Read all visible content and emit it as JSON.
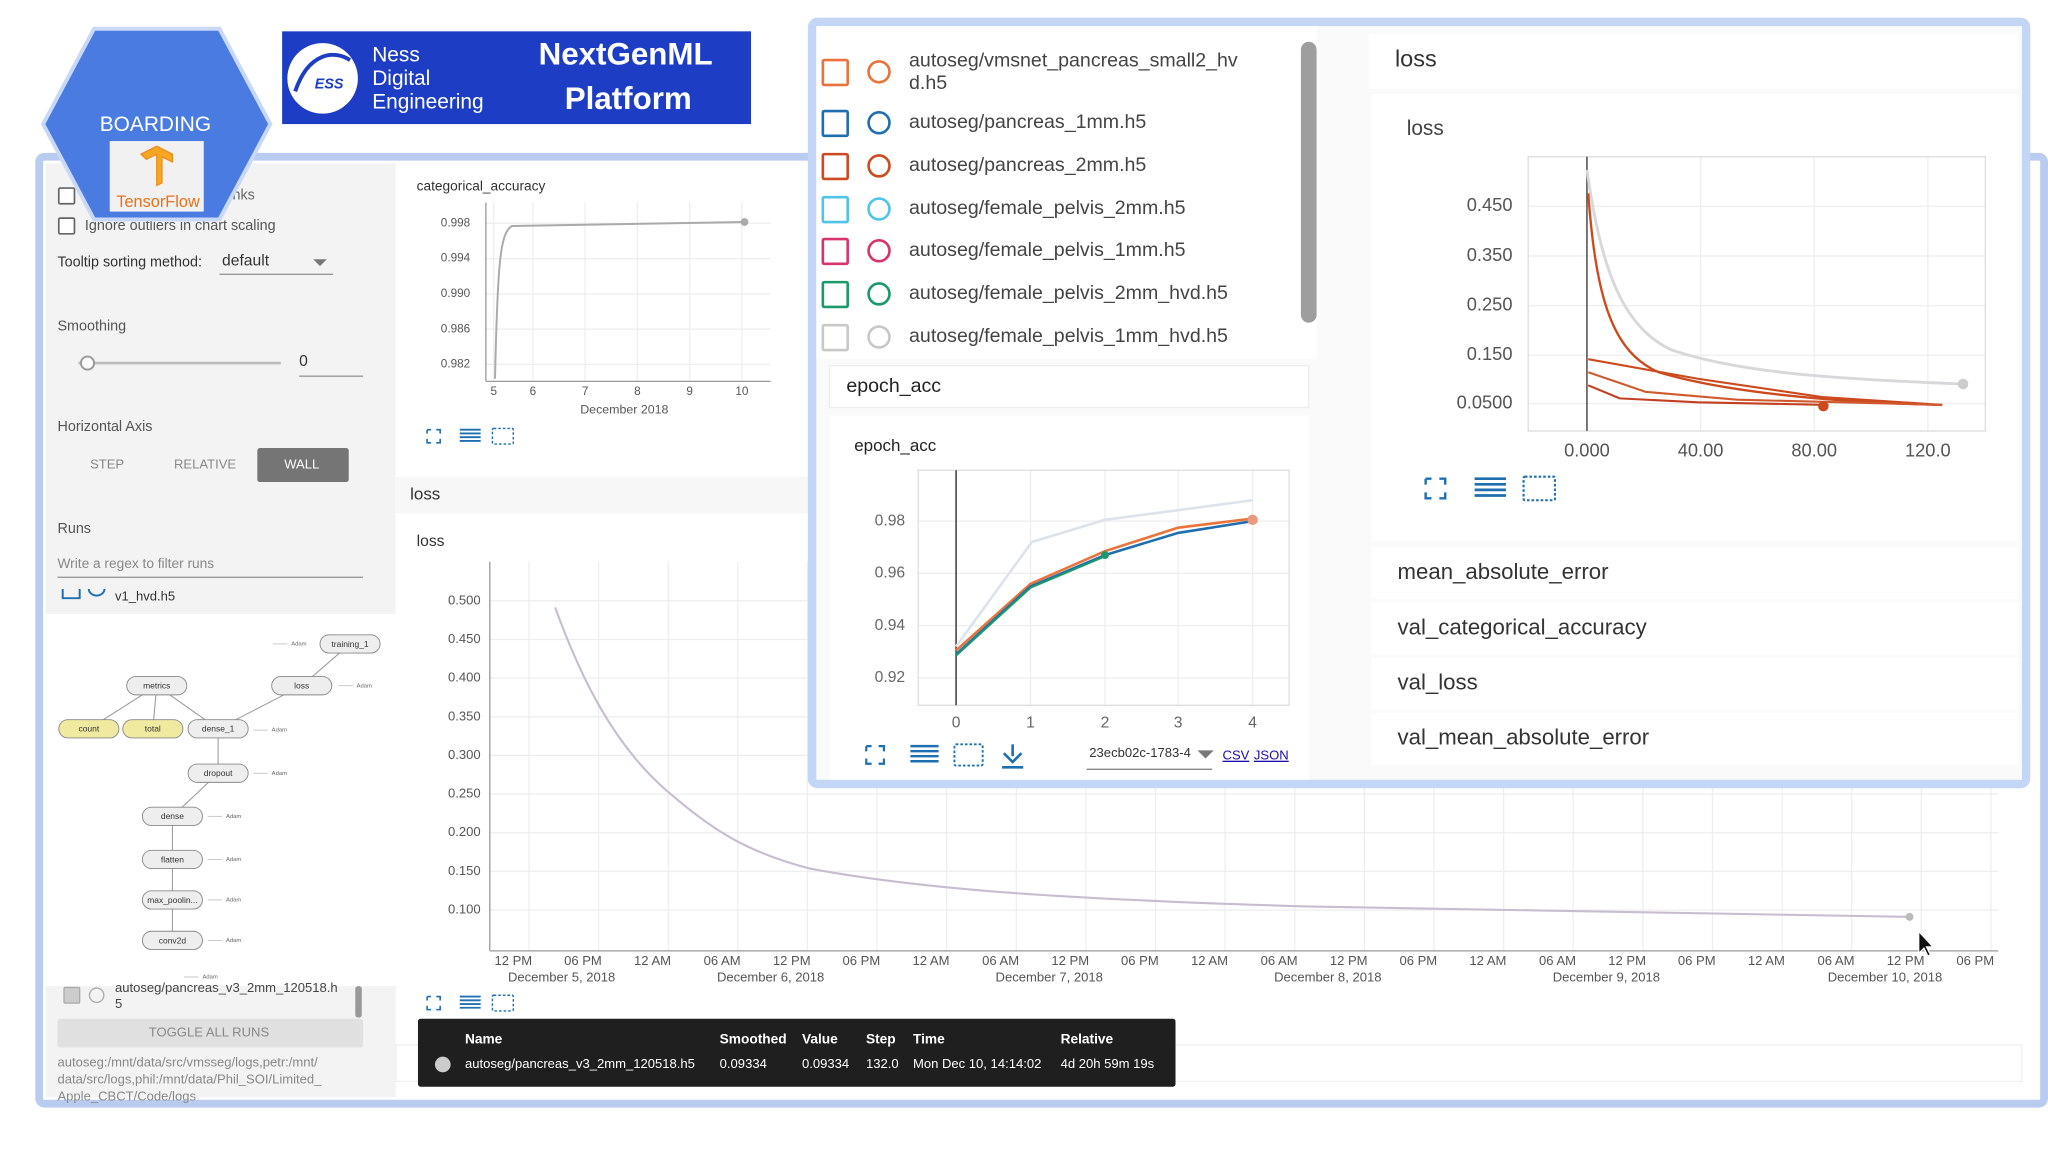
{
  "logo": {
    "badge": "BOARDING",
    "tf": "TensorFlow",
    "company": [
      "Ness",
      "Digital",
      "Engineering"
    ],
    "ess": "ESS",
    "platform": [
      "NextGenML",
      "Platform"
    ]
  },
  "sidebar": {
    "partial_option": "nks",
    "ignore_outliers": "Ignore outliers in chart scaling",
    "tooltip_label": "Tooltip sorting method:",
    "tooltip_value": "default",
    "smoothing": "Smoothing",
    "smoothing_value": "0",
    "horizontal_axis": "Horizontal Axis",
    "axis_buttons": [
      "STEP",
      "RELATIVE",
      "WALL"
    ],
    "runs": "Runs",
    "filter_placeholder": "Write a regex to filter runs",
    "run_item": "v1_hvd.h5",
    "bottom_run": [
      "autoseg/pancreas_v3_2mm_120518.h",
      "5"
    ],
    "toggle": "TOGGLE ALL RUNS",
    "logdir": [
      "autoseg:/mnt/data/src/vmsseg/logs,petr:/mnt/",
      "data/src/logs,phil:/mnt/data/Phil_SOI/Limited_",
      "Apple_CBCT/Code/logs"
    ]
  },
  "graph": {
    "nodes": [
      "training_1",
      "metrics",
      "loss",
      "count",
      "total",
      "dense_1",
      "dropout",
      "dense",
      "flatten",
      "max_poolin...",
      "conv2d"
    ],
    "edge_label": "Adam"
  },
  "categorical_accuracy_chart": {
    "title": "categorical_accuracy",
    "yticks": [
      "0.998",
      "0.994",
      "0.990",
      "0.986",
      "0.982"
    ],
    "xticks": [
      "5",
      "6",
      "7",
      "8",
      "9",
      "10"
    ],
    "xlabel": "December 2018"
  },
  "loss_chart": {
    "header": "loss",
    "title": "loss",
    "yticks": [
      "0.500",
      "0.450",
      "0.400",
      "0.350",
      "0.300",
      "0.250",
      "0.200",
      "0.150",
      "0.100"
    ],
    "xticks": [
      "12 PM",
      "06 PM",
      "12 AM",
      "06 AM",
      "12 PM",
      "06 PM",
      "12 AM",
      "06 AM",
      "12 PM",
      "06 PM",
      "12 AM",
      "06 AM",
      "12 PM",
      "06 PM",
      "12 AM",
      "06 AM",
      "12 PM",
      "06 PM",
      "12 AM",
      "06 AM",
      "12 PM",
      "06 PM"
    ],
    "dates": [
      "December 5, 2018",
      "December 6, 2018",
      "December 7, 2018",
      "December 8, 2018",
      "December 9, 2018",
      "December 10, 2018"
    ]
  },
  "tooltip": {
    "headers": [
      "Name",
      "Smoothed",
      "Value",
      "Step",
      "Time",
      "Relative"
    ],
    "row": [
      "autoseg/pancreas_v3_2mm_120518.h5",
      "0.09334",
      "0.09334",
      "132.0",
      "Mon Dec 10, 14:14:02",
      "4d 20h 59m 19s"
    ]
  },
  "popup": {
    "runs": [
      [
        "autoseg/vmsnet_pancreas_small2_hv",
        "d.h5"
      ],
      [
        "autoseg/pancreas_1mm.h5"
      ],
      [
        "autoseg/pancreas_2mm.h5"
      ],
      [
        "autoseg/female_pelvis_2mm.h5"
      ],
      [
        "autoseg/female_pelvis_1mm.h5"
      ],
      [
        "autoseg/female_pelvis_2mm_hvd.h5"
      ],
      [
        "autoseg/female_pelvis_1mm_hvd.h5"
      ]
    ],
    "epoch_header": "epoch_acc",
    "epoch_title": "epoch_acc",
    "epoch_yticks": [
      "0.98",
      "0.96",
      "0.94",
      "0.92"
    ],
    "epoch_xticks": [
      "0",
      "1",
      "2",
      "3",
      "4"
    ],
    "run_select": "23ecb02c-1783-4",
    "csv": "CSV",
    "json": "JSON",
    "loss_header": "loss",
    "loss_title": "loss",
    "loss_yticks": [
      "0.450",
      "0.350",
      "0.250",
      "0.150",
      "0.0500"
    ],
    "loss_xticks": [
      "0.000",
      "40.00",
      "80.00",
      "120.0"
    ],
    "metrics": [
      "mean_absolute_error",
      "val_categorical_accuracy",
      "val_loss",
      "val_mean_absolute_error"
    ]
  }
}
